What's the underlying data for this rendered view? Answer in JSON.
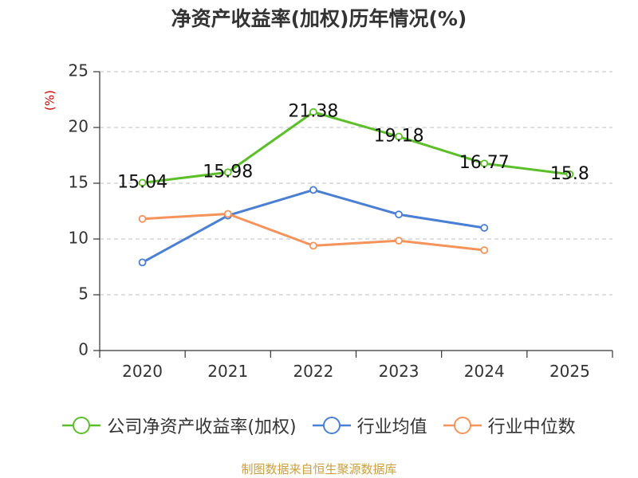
{
  "chart_data": {
    "type": "line",
    "title": "净资产收益率(加权)历年情况(%)",
    "ylabel": "(%)",
    "xlabel": "",
    "categories": [
      "2020",
      "2021",
      "2022",
      "2023",
      "2024",
      "2025"
    ],
    "ylim": [
      0,
      25
    ],
    "yticks": [
      0,
      5,
      10,
      15,
      20,
      25
    ],
    "grid": true,
    "legend_position": "bottom",
    "series": [
      {
        "name": "公司净资产收益率(加权)",
        "color": "#5cbf2a",
        "values": [
          15.04,
          15.98,
          21.38,
          19.18,
          16.77,
          15.8
        ],
        "labels": [
          "15.04",
          "15.98",
          "21.38",
          "19.18",
          "16.77",
          "15.8"
        ]
      },
      {
        "name": "行业均值",
        "color": "#4a7fd4",
        "values": [
          7.9,
          12.1,
          14.4,
          12.2,
          11.0,
          null
        ]
      },
      {
        "name": "行业中位数",
        "color": "#f5935a",
        "values": [
          11.8,
          12.25,
          9.4,
          9.85,
          9.0,
          null
        ]
      }
    ],
    "source": "制图数据来自恒生聚源数据库"
  }
}
